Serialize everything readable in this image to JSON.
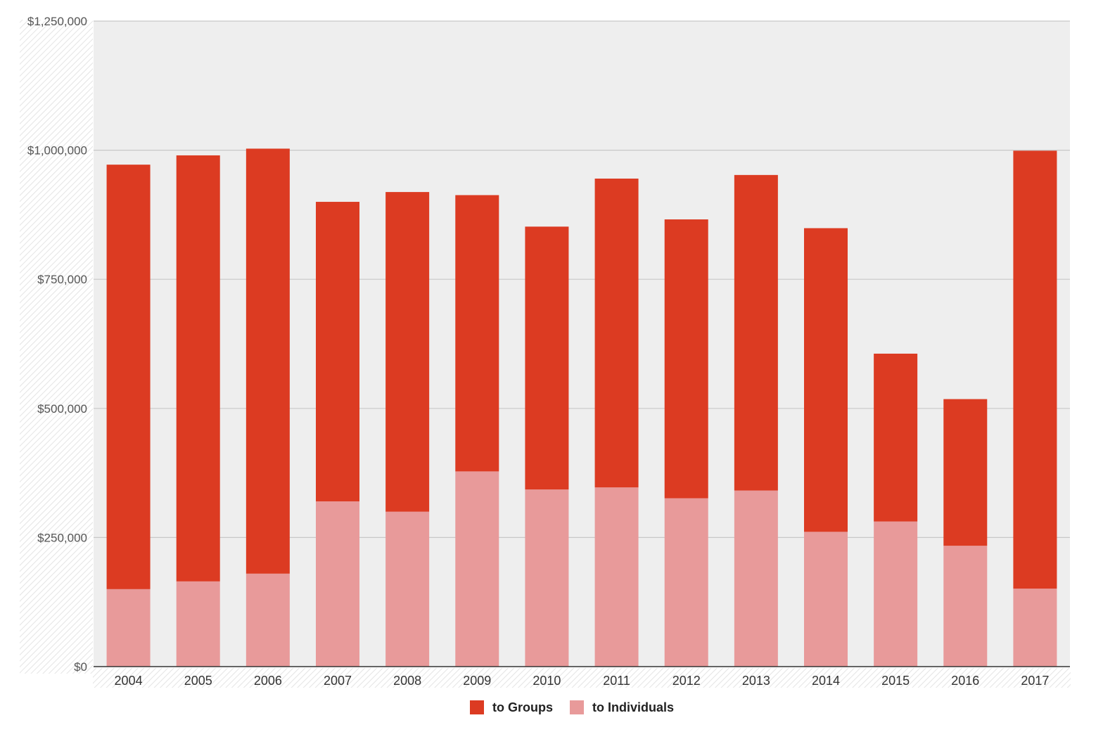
{
  "chart_data": {
    "type": "bar",
    "stacked": true,
    "title": "",
    "xlabel": "",
    "ylabel": "",
    "ylim": [
      0,
      1250000
    ],
    "y_ticks": [
      0,
      250000,
      500000,
      750000,
      1000000,
      1250000
    ],
    "y_tick_labels": [
      "$0",
      "$250,000",
      "$500,000",
      "$750,000",
      "$1,000,000",
      "$1,250,000"
    ],
    "grid": true,
    "legend_position": "bottom-center",
    "categories": [
      "2004",
      "2005",
      "2006",
      "2007",
      "2008",
      "2009",
      "2010",
      "2011",
      "2012",
      "2013",
      "2014",
      "2015",
      "2016",
      "2017"
    ],
    "series": [
      {
        "name": "to Individuals",
        "color": "#E89A9A",
        "values": [
          150000,
          165000,
          180000,
          320000,
          300000,
          378000,
          343000,
          347000,
          326000,
          341000,
          261000,
          281000,
          234000,
          151000
        ]
      },
      {
        "name": "to Groups",
        "color": "#DC3B22",
        "values": [
          822000,
          825000,
          823000,
          580000,
          619000,
          535000,
          509000,
          598000,
          540000,
          611000,
          588000,
          325000,
          284000,
          848000
        ]
      }
    ],
    "legend": [
      {
        "label": "to Groups",
        "color": "#DC3B22"
      },
      {
        "label": "to Individuals",
        "color": "#E89A9A"
      }
    ],
    "colors": {
      "plot_background": "#EEEEEE",
      "gridline": "#C8C8C8",
      "baseline": "#333333"
    }
  }
}
